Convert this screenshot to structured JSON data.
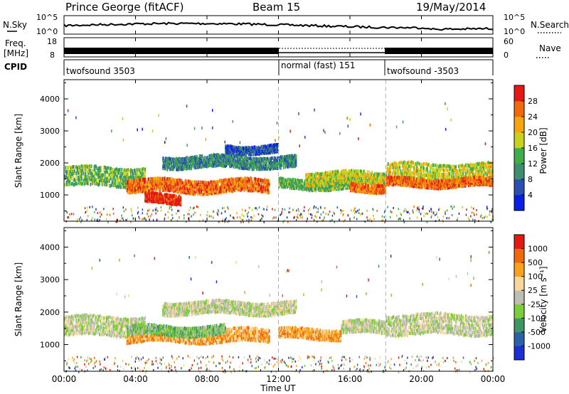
{
  "header": {
    "station": "Prince George (fitACF)",
    "beam": "Beam 15",
    "date": "19/May/2014"
  },
  "noise_panel": {
    "left_label": "N.Sky",
    "right_label": "N.Search",
    "left_ticks": [
      "10^5",
      "10^0"
    ],
    "right_ticks": [
      "10^5",
      "10^0"
    ]
  },
  "freq_panel": {
    "left_label_1": "Freq.",
    "left_label_2": "[MHz]",
    "left_ticks": [
      "18",
      "8"
    ],
    "right_label": "Nave",
    "right_ticks": [
      "60",
      "0"
    ]
  },
  "cpid": {
    "label": "CPID",
    "segments": [
      {
        "name": "twofsound 3503",
        "start_h": 0,
        "end_h": 12
      },
      {
        "name": "normal (fast) 151",
        "start_h": 12,
        "end_h": 18
      },
      {
        "name": "twofsound -3503",
        "start_h": 18,
        "end_h": 24
      }
    ]
  },
  "time_axis": {
    "label": "Time UT",
    "ticks": [
      "00:00",
      "04:00",
      "08:00",
      "12:00",
      "16:00",
      "20:00",
      "00:00"
    ],
    "tick_hours": [
      0,
      4,
      8,
      12,
      16,
      20,
      24
    ]
  },
  "chart_data": [
    {
      "type": "heatmap",
      "title": "",
      "ylabel": "Slant Range [km]",
      "xlabel": "",
      "xlim_hours": [
        0,
        24
      ],
      "ylim": [
        180,
        4600
      ],
      "yticks": [
        1000,
        2000,
        3000,
        4000
      ],
      "colorbar": {
        "label": "Power [dB]",
        "ticks": [
          "4",
          "8",
          "12",
          "16",
          "20",
          "24",
          "28"
        ],
        "colors": [
          "#0a1ee6",
          "#2a4fb0",
          "#3d8e6e",
          "#3fae4a",
          "#c8d21e",
          "#f6a60d",
          "#f06a0c",
          "#e31a12"
        ]
      },
      "bands": [
        {
          "t0": 0.0,
          "t1": 4.5,
          "center_km": 1550,
          "width_km": 620,
          "level": 3
        },
        {
          "t0": 3.5,
          "t1": 11.5,
          "center_km": 1250,
          "width_km": 420,
          "level": 6
        },
        {
          "t0": 4.5,
          "t1": 6.5,
          "center_km": 850,
          "width_km": 300,
          "level": 7
        },
        {
          "t0": 5.5,
          "t1": 13.0,
          "center_km": 2000,
          "width_km": 380,
          "level": 2
        },
        {
          "t0": 9.0,
          "t1": 12.0,
          "center_km": 2400,
          "width_km": 250,
          "level": 1
        },
        {
          "t0": 12.0,
          "t1": 16.5,
          "center_km": 1300,
          "width_km": 300,
          "level": 3
        },
        {
          "t0": 13.5,
          "t1": 18.0,
          "center_km": 1500,
          "width_km": 400,
          "level": 4
        },
        {
          "t0": 16.0,
          "t1": 18.0,
          "center_km": 1200,
          "width_km": 250,
          "level": 6
        },
        {
          "t0": 18.0,
          "t1": 24.0,
          "center_km": 1650,
          "width_km": 650,
          "level": 4
        },
        {
          "t0": 18.0,
          "t1": 24.0,
          "center_km": 1350,
          "width_km": 260,
          "level": 6
        }
      ]
    },
    {
      "type": "heatmap",
      "title": "",
      "ylabel": "Slant Range [km]",
      "xlabel": "Time UT",
      "xlim_hours": [
        0,
        24
      ],
      "ylim": [
        180,
        4600
      ],
      "yticks": [
        1000,
        2000,
        3000,
        4000
      ],
      "colorbar": {
        "label": "Velocity [m s⁻¹]",
        "ticks": [
          "1000",
          "500",
          "100",
          "25",
          "-25",
          "-100",
          "-500",
          "-1000"
        ],
        "colors": [
          "#1c2fd0",
          "#2a62a8",
          "#3d9663",
          "#7ccd3a",
          "#bebeb4",
          "#f7d79a",
          "#f8a21d",
          "#f06a0c",
          "#e31a12"
        ]
      },
      "bands": [
        {
          "t0": 0.0,
          "t1": 4.5,
          "center_km": 1550,
          "width_km": 620,
          "level": 4
        },
        {
          "t0": 3.5,
          "t1": 11.5,
          "center_km": 1250,
          "width_km": 420,
          "level": 6
        },
        {
          "t0": 3.5,
          "t1": 9.0,
          "center_km": 1400,
          "width_km": 300,
          "level": 3
        },
        {
          "t0": 5.5,
          "t1": 13.0,
          "center_km": 2100,
          "width_km": 400,
          "level": 4
        },
        {
          "t0": 12.0,
          "t1": 15.5,
          "center_km": 1300,
          "width_km": 320,
          "level": 6
        },
        {
          "t0": 15.5,
          "t1": 18.0,
          "center_km": 1500,
          "width_km": 400,
          "level": 4
        },
        {
          "t0": 18.0,
          "t1": 24.0,
          "center_km": 1600,
          "width_km": 650,
          "level": 4
        }
      ]
    }
  ]
}
